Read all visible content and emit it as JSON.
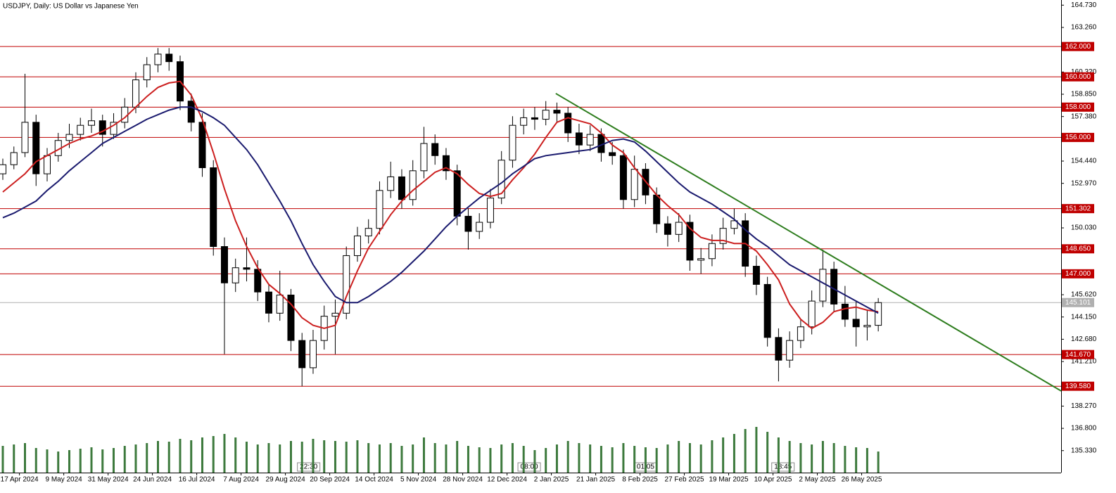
{
  "chart_data": {
    "type": "candlestick",
    "title": "USDJPY, Daily:  US Dollar vs Japanese Yen",
    "xlim": [
      -0.254,
      95.5
    ],
    "ylim": [
      133.88,
      165.07
    ],
    "yticks": [
      {
        "value": 164.73,
        "label": "164.730"
      },
      {
        "value": 163.26,
        "label": "163.260"
      },
      {
        "value": 160.32,
        "label": "160.320"
      },
      {
        "value": 158.85,
        "label": "158.850"
      },
      {
        "value": 157.38,
        "label": "157.380"
      },
      {
        "value": 154.44,
        "label": "154.440"
      },
      {
        "value": 152.97,
        "label": "152.970"
      },
      {
        "value": 150.03,
        "label": "150.030"
      },
      {
        "value": 145.62,
        "label": "145.620"
      },
      {
        "value": 144.15,
        "label": "144.150"
      },
      {
        "value": 142.68,
        "label": "142.680"
      },
      {
        "value": 141.21,
        "label": "141.210"
      },
      {
        "value": 138.27,
        "label": "138.270"
      },
      {
        "value": 136.8,
        "label": "136.800"
      },
      {
        "value": 135.33,
        "label": "135.330"
      }
    ],
    "xticks": [
      {
        "value": 1.5,
        "label": "17 Apr 2024"
      },
      {
        "value": 5.5,
        "label": "9 May 2024"
      },
      {
        "value": 9.5,
        "label": "31 May 2024"
      },
      {
        "value": 13.5,
        "label": "24 Jun 2024"
      },
      {
        "value": 17.5,
        "label": "16 Jul 2024"
      },
      {
        "value": 21.5,
        "label": "7 Aug 2024"
      },
      {
        "value": 25.5,
        "label": "29 Aug 2024"
      },
      {
        "value": 29.5,
        "label": "20 Sep 2024"
      },
      {
        "value": 33.5,
        "label": "14 Oct 2024"
      },
      {
        "value": 37.5,
        "label": "5 Nov 2024"
      },
      {
        "value": 41.5,
        "label": "28 Nov 2024"
      },
      {
        "value": 45.5,
        "label": "12 Dec 2024"
      },
      {
        "value": 49.5,
        "label": "2 Jan 2025"
      },
      {
        "value": 53.5,
        "label": "21 Jan 2025"
      },
      {
        "value": 57.5,
        "label": "8 Feb 2025"
      },
      {
        "value": 61.5,
        "label": "27 Feb 2025"
      },
      {
        "value": 65.5,
        "label": "19 Mar 2025"
      },
      {
        "value": 69.5,
        "label": "10 Apr 2025"
      },
      {
        "value": 73.5,
        "label": "2 May 2025"
      },
      {
        "value": 77.5,
        "label": "26 May 2025"
      }
    ],
    "ohlc": [
      [
        153.6,
        154.6,
        153.2,
        154.2
      ],
      [
        154.2,
        155.4,
        153.9,
        155.0
      ],
      [
        155.0,
        160.2,
        154.7,
        157.0
      ],
      [
        157.0,
        157.5,
        152.8,
        153.6
      ],
      [
        153.6,
        155.3,
        153.1,
        154.8
      ],
      [
        154.8,
        156.3,
        154.4,
        155.8
      ],
      [
        155.8,
        156.9,
        155.3,
        156.2
      ],
      [
        156.2,
        157.3,
        155.8,
        156.8
      ],
      [
        156.8,
        157.9,
        156.3,
        157.1
      ],
      [
        157.1,
        157.5,
        155.4,
        156.2
      ],
      [
        156.2,
        157.6,
        155.9,
        157.0
      ],
      [
        157.0,
        158.6,
        156.6,
        158.0
      ],
      [
        158.0,
        160.3,
        157.6,
        159.8
      ],
      [
        159.8,
        161.3,
        159.3,
        160.8
      ],
      [
        160.8,
        161.9,
        160.3,
        161.5
      ],
      [
        161.5,
        161.9,
        160.4,
        161.0
      ],
      [
        161.0,
        161.4,
        157.8,
        158.4
      ],
      [
        158.4,
        158.9,
        156.4,
        157.0
      ],
      [
        157.0,
        157.6,
        153.4,
        154.0
      ],
      [
        154.0,
        154.5,
        148.2,
        148.8
      ],
      [
        148.8,
        149.4,
        141.7,
        146.4
      ],
      [
        146.4,
        148.0,
        145.8,
        147.4
      ],
      [
        147.4,
        149.4,
        146.5,
        147.3
      ],
      [
        147.3,
        147.9,
        145.2,
        145.8
      ],
      [
        145.8,
        146.3,
        143.8,
        144.4
      ],
      [
        144.4,
        147.2,
        143.9,
        145.6
      ],
      [
        145.6,
        146.0,
        141.9,
        142.6
      ],
      [
        142.6,
        143.1,
        139.58,
        140.8
      ],
      [
        140.8,
        143.3,
        140.4,
        142.6
      ],
      [
        142.6,
        144.9,
        142.0,
        144.2
      ],
      [
        144.2,
        145.3,
        141.7,
        144.4
      ],
      [
        144.4,
        148.8,
        144.0,
        148.2
      ],
      [
        148.2,
        150.1,
        147.8,
        149.5
      ],
      [
        149.5,
        150.6,
        149.0,
        150.0
      ],
      [
        150.0,
        153.1,
        149.6,
        152.5
      ],
      [
        152.5,
        154.4,
        152.0,
        153.4
      ],
      [
        153.4,
        153.9,
        151.3,
        151.9
      ],
      [
        151.9,
        154.5,
        151.5,
        153.8
      ],
      [
        153.8,
        156.7,
        153.3,
        155.6
      ],
      [
        155.6,
        156.2,
        154.2,
        154.8
      ],
      [
        154.8,
        155.3,
        153.2,
        153.8
      ],
      [
        153.8,
        154.2,
        150.2,
        150.8
      ],
      [
        150.8,
        151.3,
        148.6,
        149.8
      ],
      [
        149.8,
        151.0,
        149.3,
        150.4
      ],
      [
        150.4,
        152.6,
        150.0,
        152.0
      ],
      [
        152.0,
        155.1,
        151.6,
        154.5
      ],
      [
        154.5,
        157.4,
        154.0,
        156.8
      ],
      [
        156.8,
        157.9,
        156.2,
        157.3
      ],
      [
        157.3,
        158.0,
        156.5,
        157.2
      ],
      [
        157.2,
        158.4,
        156.8,
        157.8
      ],
      [
        157.8,
        158.3,
        157.0,
        157.6
      ],
      [
        157.6,
        158.0,
        155.7,
        156.3
      ],
      [
        156.3,
        156.9,
        154.9,
        155.5
      ],
      [
        155.5,
        156.8,
        155.1,
        156.2
      ],
      [
        156.2,
        156.6,
        154.4,
        155.0
      ],
      [
        155.0,
        155.7,
        154.2,
        154.8
      ],
      [
        154.8,
        155.2,
        151.3,
        151.9
      ],
      [
        151.9,
        154.8,
        151.4,
        153.9
      ],
      [
        153.9,
        154.3,
        151.6,
        152.2
      ],
      [
        152.2,
        152.7,
        149.7,
        150.3
      ],
      [
        150.3,
        150.8,
        148.8,
        149.6
      ],
      [
        149.6,
        151.0,
        149.1,
        150.4
      ],
      [
        150.4,
        150.9,
        147.2,
        147.9
      ],
      [
        147.9,
        148.7,
        147.0,
        148.0
      ],
      [
        148.0,
        149.6,
        147.5,
        149.0
      ],
      [
        149.0,
        150.7,
        148.6,
        150.0
      ],
      [
        150.0,
        151.3,
        149.6,
        150.5
      ],
      [
        150.5,
        151.0,
        146.8,
        147.5
      ],
      [
        147.5,
        148.2,
        145.6,
        146.3
      ],
      [
        146.3,
        146.8,
        142.2,
        142.8
      ],
      [
        142.8,
        143.4,
        139.9,
        141.3
      ],
      [
        141.3,
        143.2,
        140.8,
        142.6
      ],
      [
        142.6,
        144.0,
        142.1,
        143.5
      ],
      [
        143.5,
        145.9,
        143.0,
        145.2
      ],
      [
        145.2,
        148.6,
        144.8,
        147.3
      ],
      [
        147.3,
        147.8,
        144.5,
        145.0
      ],
      [
        145.0,
        146.2,
        143.5,
        144.0
      ],
      [
        144.0,
        145.2,
        142.2,
        143.5
      ],
      [
        143.5,
        144.6,
        142.6,
        143.6
      ],
      [
        143.6,
        145.4,
        143.2,
        145.1
      ]
    ],
    "ma": [
      {
        "color": "#cc1f1f",
        "values": [
          152.4,
          153.0,
          153.6,
          154.4,
          154.8,
          155.2,
          155.6,
          155.9,
          156.1,
          156.4,
          156.8,
          157.3,
          158.0,
          158.7,
          159.3,
          159.6,
          159.7,
          158.8,
          157.2,
          155.0,
          152.6,
          150.5,
          148.8,
          147.4,
          146.3,
          145.7,
          145.0,
          144.1,
          143.6,
          143.4,
          143.6,
          145.5,
          147.2,
          148.7,
          149.8,
          150.9,
          151.8,
          152.5,
          153.1,
          153.7,
          154.0,
          153.6,
          152.9,
          152.3,
          152.1,
          152.3,
          153.2,
          154.0,
          154.9,
          156.0,
          157.0,
          157.3,
          157.1,
          156.9,
          156.3,
          155.5,
          155.0,
          154.0,
          153.1,
          152.2,
          151.5,
          150.9,
          150.0,
          149.4,
          149.2,
          149.2,
          149.0,
          149.0,
          148.5,
          147.6,
          146.6,
          145.0,
          144.0,
          143.4,
          143.8,
          144.5,
          144.7,
          144.8,
          144.6,
          144.5
        ]
      },
      {
        "color": "#1a1a6e",
        "values": [
          150.7,
          151.0,
          151.4,
          151.8,
          152.5,
          153.1,
          153.8,
          154.4,
          155.0,
          155.6,
          156.0,
          156.4,
          156.8,
          157.2,
          157.5,
          157.8,
          158.0,
          158.0,
          157.7,
          157.3,
          156.8,
          156.0,
          155.2,
          154.2,
          153.0,
          151.8,
          150.5,
          149.0,
          147.6,
          146.5,
          145.5,
          145.1,
          145.1,
          145.5,
          146.0,
          146.5,
          147.1,
          147.8,
          148.5,
          149.3,
          150.1,
          150.8,
          151.4,
          152.0,
          152.5,
          153.0,
          153.6,
          154.1,
          154.6,
          154.8,
          154.9,
          155.0,
          155.1,
          155.2,
          155.5,
          155.8,
          155.9,
          155.7,
          155.1,
          154.4,
          153.7,
          153.0,
          152.4,
          152.0,
          151.6,
          151.1,
          150.6,
          149.9,
          149.3,
          148.8,
          148.2,
          147.6,
          147.2,
          146.8,
          146.4,
          146.0,
          145.6,
          145.2,
          144.8,
          144.4
        ]
      }
    ],
    "volume_color": "#3d7a3d",
    "volume_lim": [
      0,
      100
    ],
    "volume": [
      38,
      40,
      42,
      35,
      33,
      30,
      32,
      34,
      36,
      33,
      35,
      38,
      40,
      42,
      45,
      44,
      48,
      46,
      50,
      52,
      55,
      50,
      44,
      40,
      42,
      40,
      45,
      44,
      48,
      46,
      45,
      44,
      46,
      42,
      40,
      42,
      38,
      40,
      50,
      42,
      40,
      45,
      38,
      36,
      35,
      40,
      42,
      38,
      32,
      35,
      40,
      45,
      42,
      40,
      38,
      36,
      42,
      38,
      36,
      35,
      40,
      45,
      42,
      40,
      46,
      50,
      55,
      62,
      65,
      58,
      50,
      45,
      42,
      40,
      45,
      42,
      38,
      36,
      35,
      30
    ],
    "level_color": "#c00000",
    "levels": [
      {
        "value": 162,
        "label": "162.000"
      },
      {
        "value": 160,
        "label": "160.000"
      },
      {
        "value": 158,
        "label": "158.000"
      },
      {
        "value": 156,
        "label": "156.000"
      },
      {
        "value": 151.302,
        "label": "151.302"
      },
      {
        "value": 148.65,
        "label": "148.650"
      },
      {
        "value": 147,
        "label": "147.000"
      },
      {
        "value": 141.67,
        "label": "141.670"
      },
      {
        "value": 139.58,
        "label": "139.580"
      }
    ],
    "current": {
      "value": 145.101,
      "label": "145.101",
      "color": "#b0b0b0"
    },
    "trendline": {
      "color": "#2e7d1e",
      "x": [
        49.9,
        95.5
      ],
      "y": [
        158.9,
        139.27
      ]
    },
    "session_marks": [
      {
        "x": 27.6,
        "label": "22:30"
      },
      {
        "x": 47.5,
        "label": "08:00"
      },
      {
        "x": 58,
        "label": "01:05"
      },
      {
        "x": 70.4,
        "label": "18:45"
      }
    ]
  }
}
